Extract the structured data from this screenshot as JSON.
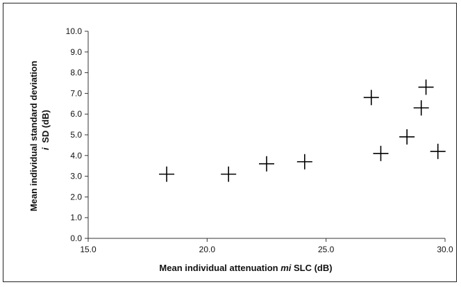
{
  "chart_data": {
    "type": "scatter",
    "title": "",
    "xlabel": {
      "prefix": "Mean individual attenuation ",
      "italic": "mi",
      "suffix": " SLC (dB)"
    },
    "ylabel": {
      "line1": "Mean individual standard deviation",
      "line2_italic": "i",
      "line2_rest": "SD (dB)"
    },
    "xlim": [
      15.0,
      30.0
    ],
    "ylim": [
      0.0,
      10.0
    ],
    "x_ticks": [
      "15.0",
      "20.0",
      "25.0",
      "30.0"
    ],
    "y_ticks": [
      "0.0",
      "1.0",
      "2.0",
      "3.0",
      "4.0",
      "5.0",
      "6.0",
      "7.0",
      "8.0",
      "9.0",
      "10.0"
    ],
    "marker": "plus",
    "grid": false,
    "points": [
      {
        "x": 18.3,
        "y": 3.1
      },
      {
        "x": 20.9,
        "y": 3.1
      },
      {
        "x": 22.5,
        "y": 3.6
      },
      {
        "x": 24.1,
        "y": 3.7
      },
      {
        "x": 26.9,
        "y": 6.8
      },
      {
        "x": 27.3,
        "y": 4.1
      },
      {
        "x": 28.4,
        "y": 4.9
      },
      {
        "x": 29.0,
        "y": 6.3
      },
      {
        "x": 29.2,
        "y": 7.3
      },
      {
        "x": 29.7,
        "y": 4.2
      }
    ]
  }
}
